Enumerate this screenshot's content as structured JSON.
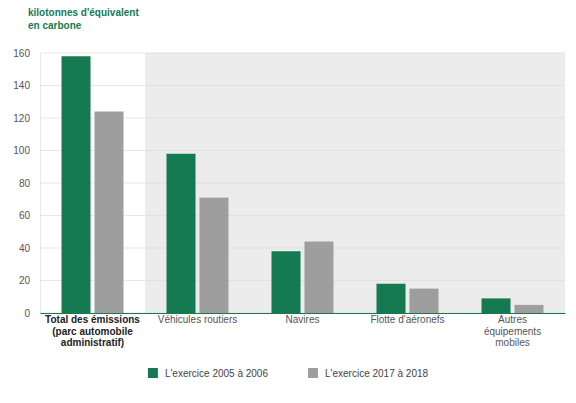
{
  "chart_data": {
    "type": "bar",
    "y_label": "kilotonnes d'équivalent en carbone",
    "categories": [
      "Total des émissions (parc automobile administratif)",
      "Véhicules routiers",
      "Navires",
      "Flotte d'aéronefs",
      "Autres équipements mobiles"
    ],
    "series": [
      {
        "name": "L'exercice 2005 à 2006",
        "color": "#157a52",
        "values": [
          158,
          98,
          38,
          18,
          9
        ]
      },
      {
        "name": "L'exercice 2017 à 2018",
        "color": "#9e9e9e",
        "values": [
          124,
          71,
          44,
          15,
          5
        ]
      }
    ],
    "ylim": [
      0,
      160
    ],
    "yticks": [
      0,
      20,
      40,
      60,
      80,
      100,
      120,
      140,
      160
    ],
    "grid": true,
    "legend": "bottom"
  }
}
